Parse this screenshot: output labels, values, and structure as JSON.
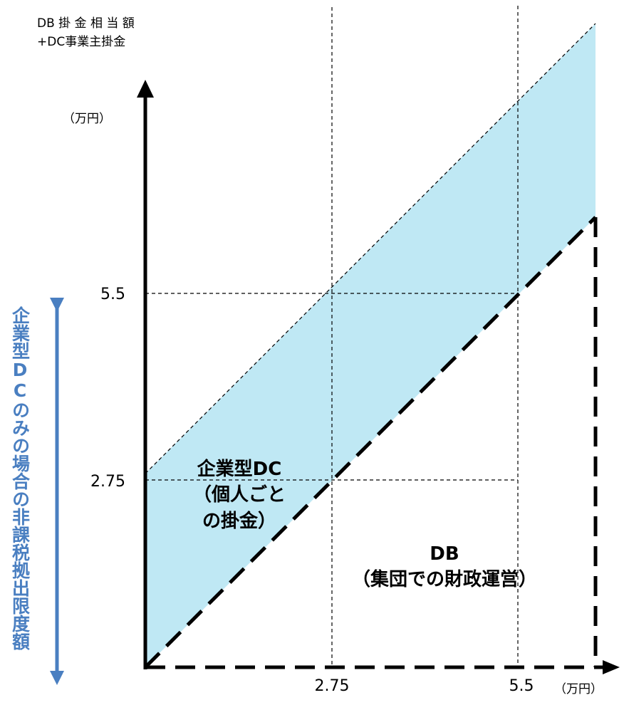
{
  "y_axis": {
    "title_lines": [
      "DB 掛 金 相 当 額",
      "+DC事業主掛金"
    ],
    "unit": "（万円）",
    "ticks": [
      "5.5",
      "2.75"
    ]
  },
  "x_axis": {
    "unit": "（万円）",
    "ticks": [
      "2.75",
      "5.5"
    ]
  },
  "regions": {
    "dc": {
      "lines": [
        "企業型DC",
        "（個人ごと",
        "の掛金）"
      ]
    },
    "db": {
      "lines": [
        "DB",
        "（集団での財政運営）"
      ]
    }
  },
  "side_label": "企業型DCのみの場合の非課税拠出限度額",
  "colors": {
    "band_fill": "#bfe8f4",
    "side_accent": "#4a7fc1",
    "axis": "#000000"
  }
}
